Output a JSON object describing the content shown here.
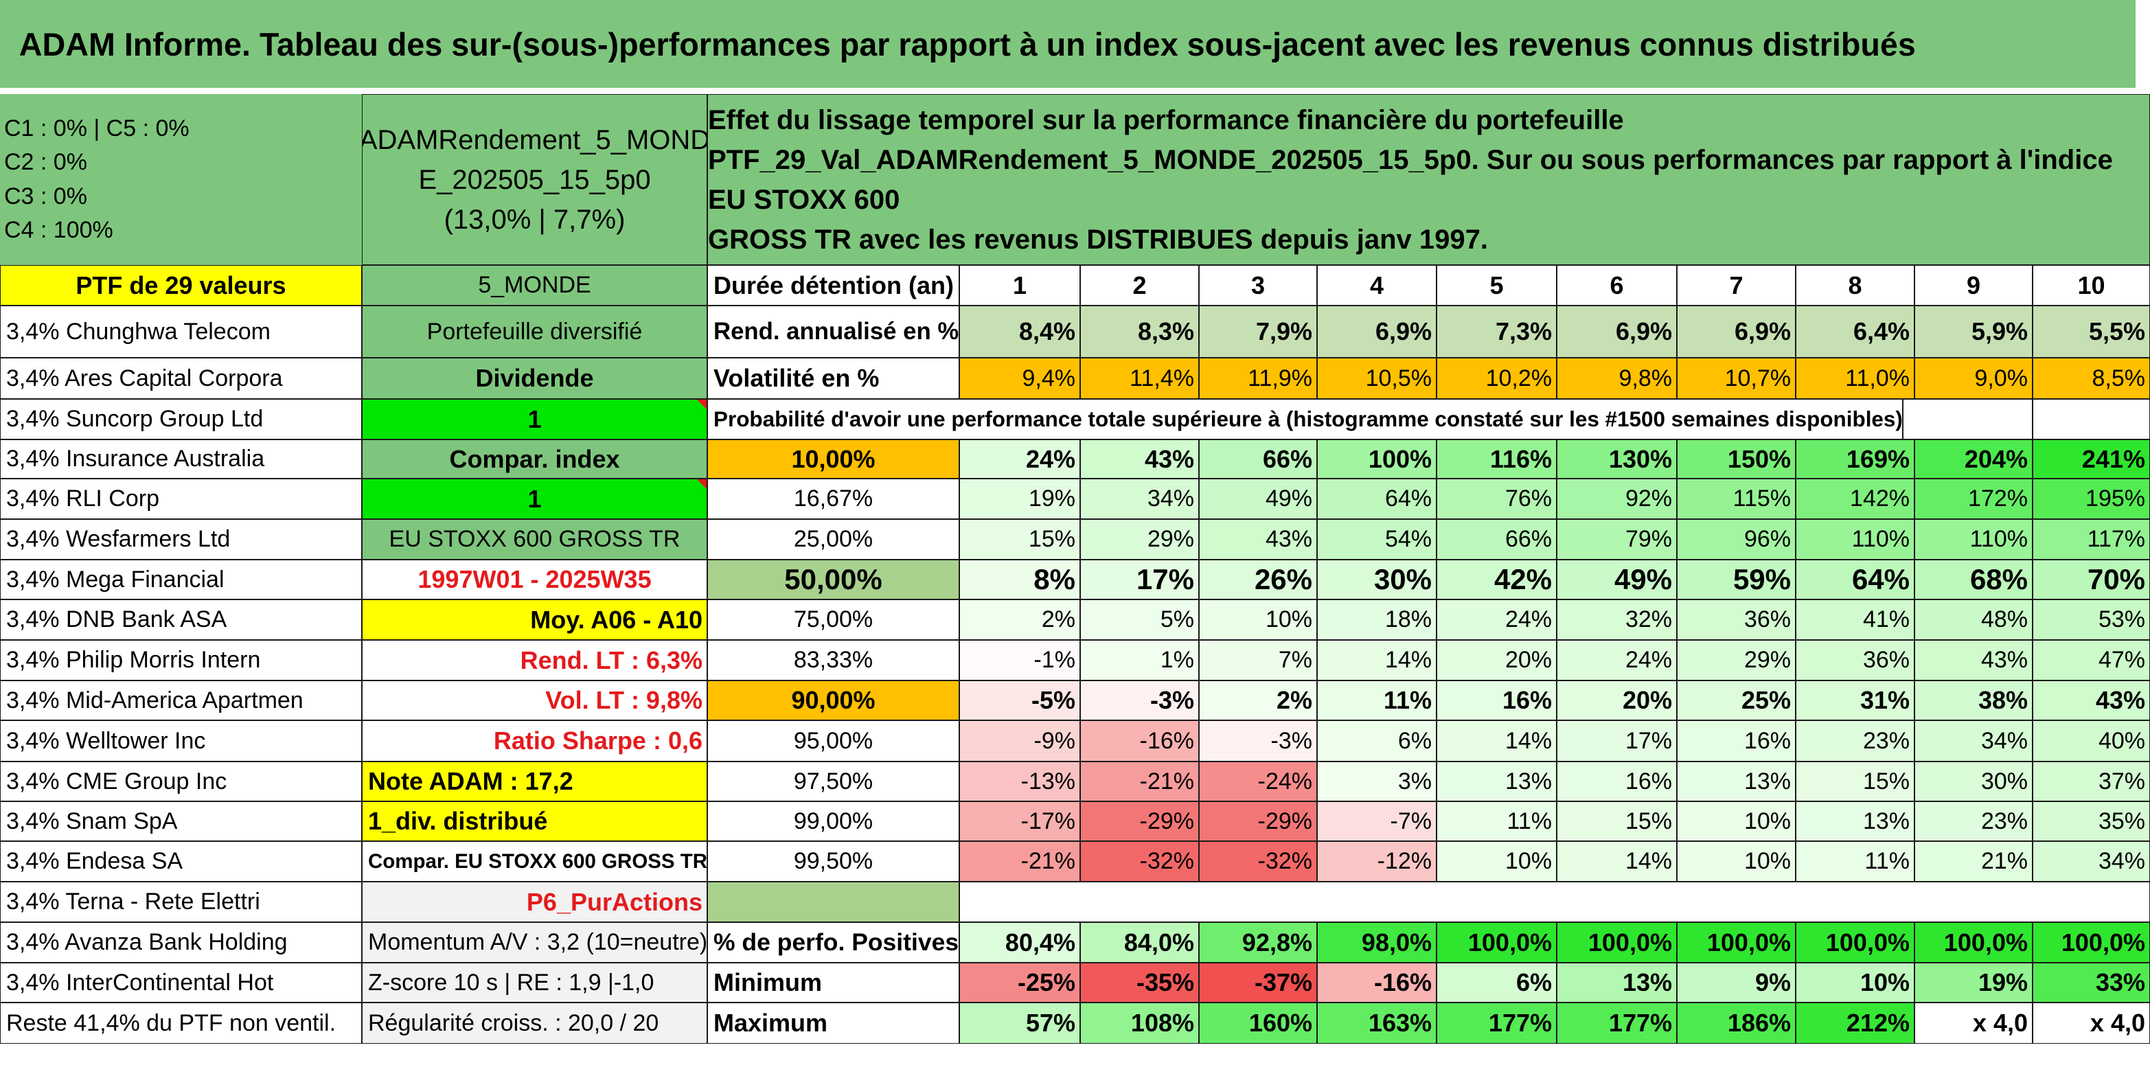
{
  "title": "ADAM Informe. Tableau des sur-(sous-)performances par rapport à un index sous-jacent avec les revenus connus distribués",
  "classes": [
    "C1 : 0% | C5 : 0%",
    "C2 : 0%",
    "C3 : 0%",
    "C4 : 100%"
  ],
  "pie": {
    "c4_share": 1.0,
    "color": "#ff0000"
  },
  "fund": {
    "name_line1": "ADAMRendement_5_MOND",
    "name_line2": "E_202505_15_5p0",
    "name_line3": "(13,0% | 7,7%)"
  },
  "description": {
    "line1": "Effet du lissage temporel sur la performance financière du portefeuille",
    "line2": "PTF_29_Val_ADAMRendement_5_MONDE_202505_15_5p0. Sur ou sous performances par rapport à l'indice EU STOXX 600",
    "line3": "GROSS TR avec les revenus DISTRIBUES depuis janv 1997."
  },
  "ptf_header": "PTF de 29 valeurs",
  "holdings": [
    "3,4% Chunghwa Telecom",
    "3,4% Ares Capital Corpora",
    "3,4% Suncorp Group Ltd",
    "3,4% Insurance Australia",
    "3,4% RLI Corp",
    "3,4% Wesfarmers Ltd",
    "3,4% Mega Financial",
    "3,4% DNB Bank ASA",
    "3,4% Philip Morris Intern",
    "3,4% Mid-America Apartmen",
    "3,4% Welltower Inc",
    "3,4% CME Group Inc",
    "3,4% Snam SpA",
    "3,4% Endesa SA",
    "3,4% Terna - Rete Elettri",
    "3,4% Avanza Bank Holding",
    "3,4% InterContinental Hot",
    "Reste 41,4% du PTF non ventil."
  ],
  "info": [
    "5_MONDE",
    "Portefeuille diversifié",
    "Dividende",
    "1",
    "Compar. index",
    "1",
    "EU STOXX 600 GROSS TR",
    "1997W01 - 2025W35",
    "Moy. A06 - A10",
    "Rend. LT : 6,3%",
    "Vol. LT : 9,8%",
    "Ratio Sharpe : 0,6",
    "Note ADAM : 17,2",
    "1_div. distribué",
    "Compar. EU STOXX 600 GROSS TR",
    "P6_PurActions",
    "Momentum A/V : 3,2 (10=neutre)",
    "Z-score 10 s | RE : 1,9 |-1,0",
    "Régularité croiss. : 20,0 / 20"
  ],
  "metric_labels": {
    "duration": "Durée détention (an)",
    "rend": "Rend. annualisé en %",
    "vol": "Volatilité en %",
    "proba": "Probabilité d'avoir une performance totale supérieure à (histogramme constaté sur les #1500 semaines disponibles)",
    "pos": "% de perfo. Positives",
    "min": "Minimum",
    "max": "Maximum"
  },
  "years": [
    "1",
    "2",
    "3",
    "4",
    "5",
    "6",
    "7",
    "8",
    "9",
    "10"
  ],
  "rend": [
    "8,4%",
    "8,3%",
    "7,9%",
    "6,9%",
    "7,3%",
    "6,9%",
    "6,9%",
    "6,4%",
    "5,9%",
    "5,5%"
  ],
  "vol": [
    "9,4%",
    "11,4%",
    "11,9%",
    "10,5%",
    "10,2%",
    "9,8%",
    "10,7%",
    "11,0%",
    "9,0%",
    "8,5%"
  ],
  "quantiles": [
    "10,00%",
    "16,67%",
    "25,00%",
    "50,00%",
    "75,00%",
    "83,33%",
    "90,00%",
    "95,00%",
    "97,50%",
    "99,00%",
    "99,50%"
  ],
  "quantile_rows": [
    [
      "24%",
      "43%",
      "66%",
      "100%",
      "116%",
      "130%",
      "150%",
      "169%",
      "204%",
      "241%"
    ],
    [
      "19%",
      "34%",
      "49%",
      "64%",
      "76%",
      "92%",
      "115%",
      "142%",
      "172%",
      "195%"
    ],
    [
      "15%",
      "29%",
      "43%",
      "54%",
      "66%",
      "79%",
      "96%",
      "110%",
      "110%",
      "117%"
    ],
    [
      "8%",
      "17%",
      "26%",
      "30%",
      "42%",
      "49%",
      "59%",
      "64%",
      "68%",
      "70%"
    ],
    [
      "2%",
      "5%",
      "10%",
      "18%",
      "24%",
      "32%",
      "36%",
      "41%",
      "48%",
      "53%"
    ],
    [
      "-1%",
      "1%",
      "7%",
      "14%",
      "20%",
      "24%",
      "29%",
      "36%",
      "43%",
      "47%"
    ],
    [
      "-5%",
      "-3%",
      "2%",
      "11%",
      "16%",
      "20%",
      "25%",
      "31%",
      "38%",
      "43%"
    ],
    [
      "-9%",
      "-16%",
      "-3%",
      "6%",
      "14%",
      "17%",
      "16%",
      "23%",
      "34%",
      "40%"
    ],
    [
      "-13%",
      "-21%",
      "-24%",
      "3%",
      "13%",
      "16%",
      "13%",
      "15%",
      "30%",
      "37%"
    ],
    [
      "-17%",
      "-29%",
      "-29%",
      "-7%",
      "11%",
      "15%",
      "10%",
      "13%",
      "23%",
      "35%"
    ],
    [
      "-21%",
      "-32%",
      "-32%",
      "-12%",
      "10%",
      "14%",
      "10%",
      "11%",
      "21%",
      "34%"
    ]
  ],
  "pos": [
    "80,4%",
    "84,0%",
    "92,8%",
    "98,0%",
    "100,0%",
    "100,0%",
    "100,0%",
    "100,0%",
    "100,0%",
    "100,0%"
  ],
  "min": [
    "-25%",
    "-35%",
    "-37%",
    "-16%",
    "6%",
    "13%",
    "9%",
    "10%",
    "19%",
    "33%"
  ],
  "max": [
    "57%",
    "108%",
    "160%",
    "163%",
    "177%",
    "177%",
    "186%",
    "212%",
    "x 4,0",
    "x 4,0"
  ],
  "colors": {
    "title_green": "#7ec67d",
    "rend_green": "#c6e0b4",
    "vol_orange": "#ffc000",
    "yellow": "#ffff00",
    "bright_green": "#00e600",
    "highlight_orange": "#ffc000",
    "median_green": "#a9d18e",
    "gray_cell": "#f2f2f2",
    "red_text": "#e41a1c"
  }
}
